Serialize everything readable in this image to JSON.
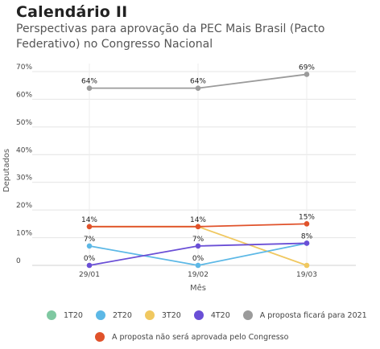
{
  "title": "Calendário II",
  "subtitle": "Perspectivas para aprovação da PEC Mais Brasil (Pacto Federativo) no Congresso Nacional",
  "chart_data": {
    "type": "line",
    "categories": [
      "29/01",
      "19/02",
      "19/03"
    ],
    "xlabel": "Mês",
    "ylabel": "Deputados",
    "ylim": [
      0,
      70
    ],
    "yticks": [
      "0",
      "10%",
      "20%",
      "30%",
      "40%",
      "50%",
      "60%",
      "70%"
    ],
    "grid": true,
    "legend_position": "bottom",
    "series": [
      {
        "name": "1T20",
        "color": "#7fc8a1",
        "values": [
          null,
          null,
          null
        ],
        "labels": [
          "",
          "",
          ""
        ]
      },
      {
        "name": "2T20",
        "color": "#5cb8e6",
        "values": [
          7,
          0,
          8
        ],
        "labels": [
          "7%",
          "0%",
          ""
        ]
      },
      {
        "name": "3T20",
        "color": "#f0c860",
        "values": [
          14,
          14,
          0
        ],
        "labels": [
          "",
          "",
          ""
        ]
      },
      {
        "name": "4T20",
        "color": "#6a4fd6",
        "values": [
          0,
          7,
          8
        ],
        "labels": [
          "0%",
          "7%",
          "8%"
        ]
      },
      {
        "name": "A proposta ficará para 2021",
        "color": "#9b9b9b",
        "values": [
          64,
          64,
          69
        ],
        "labels": [
          "64%",
          "64%",
          "69%"
        ]
      },
      {
        "name": "A proposta não será aprovada pelo Congresso",
        "color": "#e0522b",
        "values": [
          14,
          14,
          15
        ],
        "labels": [
          "14%",
          "14%",
          "15%"
        ]
      }
    ]
  }
}
